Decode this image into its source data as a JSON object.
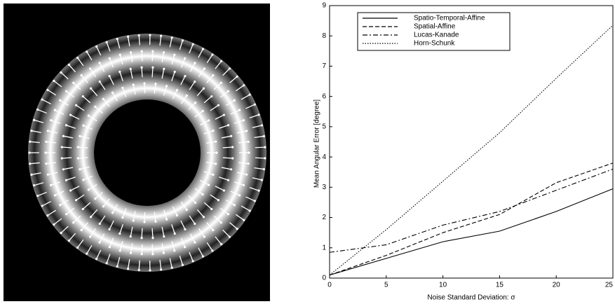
{
  "chart_data": {
    "type": "line",
    "x": [
      0,
      5,
      10,
      15,
      20,
      25
    ],
    "series": [
      {
        "name": "Spatio-Temporal-Affine",
        "color": "#000000",
        "dash": "solid",
        "values": [
          0.1,
          0.65,
          1.2,
          1.55,
          2.2,
          2.95
        ]
      },
      {
        "name": "Spatial-Affine",
        "color": "#000000",
        "dash": "dashed",
        "values": [
          0.1,
          0.75,
          1.5,
          2.1,
          3.15,
          3.8
        ]
      },
      {
        "name": "Lucas-Kanade",
        "color": "#000000",
        "dash": "dashdot",
        "values": [
          0.85,
          1.1,
          1.75,
          2.2,
          2.9,
          3.6
        ]
      },
      {
        "name": "Horn-Schunk",
        "color": "#000000",
        "dash": "dotted",
        "values": [
          0.1,
          1.6,
          3.2,
          4.8,
          6.6,
          8.35
        ]
      }
    ],
    "xlabel": "Noise Standard Deviation: σ",
    "ylabel": "Mean Angular Error   [degree]",
    "xlim": [
      0,
      25
    ],
    "xticks": [
      0,
      5,
      10,
      15,
      20,
      25
    ],
    "ylim": [
      0,
      9
    ],
    "yticks": [
      0,
      1,
      2,
      3,
      4,
      5,
      6,
      7,
      8,
      9
    ],
    "legend": "upper-left",
    "grid": false
  }
}
